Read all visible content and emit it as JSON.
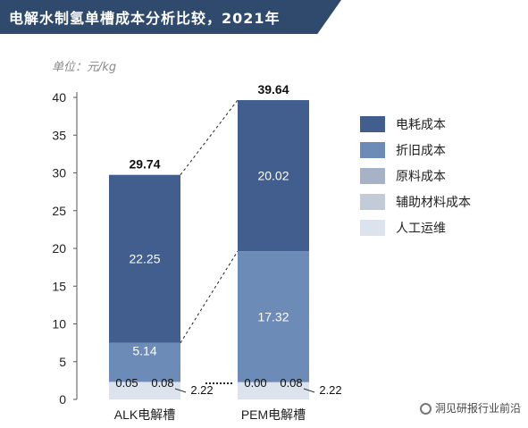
{
  "title": "电解水制氢单槽成本分析比较，2021年",
  "unit_label": "单位：元/kg",
  "watermark": "洞见研报行业前沿",
  "colors": {
    "title_bg": "#2f4a6c",
    "axis": "#555555"
  },
  "chart_data": {
    "type": "bar",
    "stacked": true,
    "categories": [
      "ALK电解槽",
      "PEM电解槽"
    ],
    "ylim": [
      0,
      40
    ],
    "yticks": [
      0,
      5,
      10,
      15,
      20,
      25,
      30,
      35,
      40
    ],
    "totals": [
      "29.74",
      "39.64"
    ],
    "legend_position": "right",
    "series": [
      {
        "name": "人工运维",
        "values": [
          2.22,
          2.22
        ],
        "labels": [
          "2.22",
          "2.22"
        ],
        "color": "#dde3ec",
        "label_color": "#111111"
      },
      {
        "name": "辅助材料成本",
        "values": [
          0.08,
          0.08
        ],
        "labels": [
          "0.08",
          "0.08"
        ],
        "color": "#c3cbd9",
        "label_color": "#111111"
      },
      {
        "name": "原料成本",
        "values": [
          0.05,
          0.0
        ],
        "labels": [
          "0.05",
          "0.00"
        ],
        "color": "#a6b2c6",
        "label_color": "#111111"
      },
      {
        "name": "折旧成本",
        "values": [
          5.14,
          17.32
        ],
        "labels": [
          "5.14",
          "17.32"
        ],
        "color": "#6d8bb7",
        "label_color": "#ffffff"
      },
      {
        "name": "电耗成本",
        "values": [
          22.25,
          20.02
        ],
        "labels": [
          "22.25",
          "20.02"
        ],
        "color": "#425e8e",
        "label_color": "#ffffff"
      }
    ]
  }
}
